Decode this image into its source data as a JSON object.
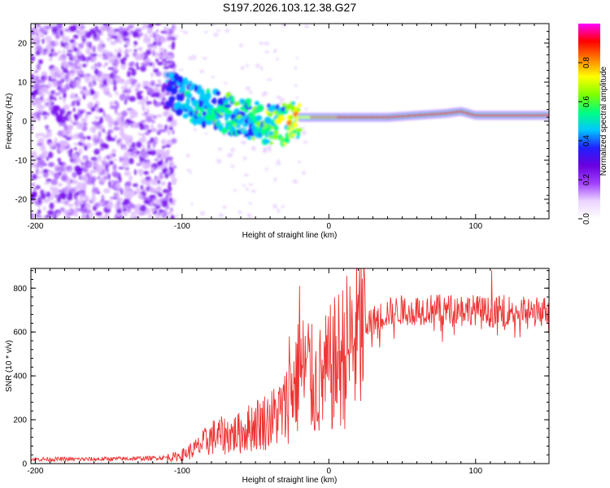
{
  "chart_data": [
    {
      "type": "heatmap",
      "title": "S197.2026.103.12.38.G27",
      "xlabel": "Height of straight line (km)",
      "ylabel": "Frequency (Hz)",
      "xlim": [
        -203,
        150
      ],
      "ylim": [
        -25,
        25
      ],
      "xticks": [
        -200,
        -100,
        0,
        100
      ],
      "yticks": [
        -20,
        -10,
        0,
        10,
        20
      ],
      "colorbar": {
        "label": "Normalized spectral amplitude",
        "range": [
          0,
          1
        ],
        "ticks": [
          0.0,
          0.2,
          0.4,
          0.6,
          0.8
        ],
        "stops": [
          "#ffffff",
          "#ecd4ff",
          "#a040ff",
          "#6a00e0",
          "#2020ff",
          "#00c8ff",
          "#00ff80",
          "#80ff00",
          "#ffff00",
          "#ff8000",
          "#ff0000",
          "#ff00ff"
        ]
      },
      "ridge": {
        "x": [
          -110,
          -100,
          -90,
          -80,
          -70,
          -60,
          -50,
          -40,
          -30,
          -20,
          -10,
          0,
          20,
          40,
          60,
          80,
          90,
          100,
          120,
          150
        ],
        "freq": [
          8,
          6,
          4,
          3,
          2,
          1,
          0,
          -1,
          -1,
          1,
          1,
          1,
          1,
          1,
          1.5,
          2,
          2.5,
          1.5,
          1.5,
          1.5
        ],
        "peak_amplitude": [
          0.3,
          0.35,
          0.4,
          0.45,
          0.45,
          0.5,
          0.5,
          0.55,
          0.6,
          0.7,
          0.8,
          0.85,
          0.9,
          0.9,
          0.9,
          0.9,
          0.9,
          0.9,
          0.9,
          0.9
        ]
      }
    },
    {
      "type": "line",
      "xlabel": "Height of straight line (km)",
      "ylabel": "SNR (10 * v/v)",
      "xlim": [
        -203,
        150
      ],
      "ylim": [
        0,
        890
      ],
      "xticks": [
        -200,
        -100,
        0,
        100
      ],
      "yticks": [
        0,
        200,
        400,
        600,
        800
      ],
      "series": [
        {
          "name": "SNR",
          "color": "#ee3333",
          "x": [
            -203,
            -180,
            -160,
            -140,
            -120,
            -105,
            -100,
            -90,
            -80,
            -70,
            -60,
            -50,
            -40,
            -30,
            -25,
            -20,
            -15,
            -10,
            -5,
            0,
            5,
            10,
            20,
            30,
            40,
            50,
            60,
            70,
            80,
            90,
            100,
            110,
            120,
            130,
            140,
            150
          ],
          "y": [
            20,
            20,
            20,
            22,
            25,
            30,
            40,
            70,
            120,
            130,
            140,
            180,
            200,
            250,
            350,
            400,
            430,
            350,
            380,
            420,
            460,
            500,
            580,
            650,
            690,
            700,
            700,
            705,
            700,
            710,
            700,
            690,
            700,
            695,
            690,
            700
          ],
          "spikes": [
            {
              "x": -27,
              "y": 580
            },
            {
              "x": -20,
              "y": 810
            },
            {
              "x": -14,
              "y": 640
            },
            {
              "x": 111,
              "y": 880
            }
          ]
        }
      ]
    }
  ]
}
